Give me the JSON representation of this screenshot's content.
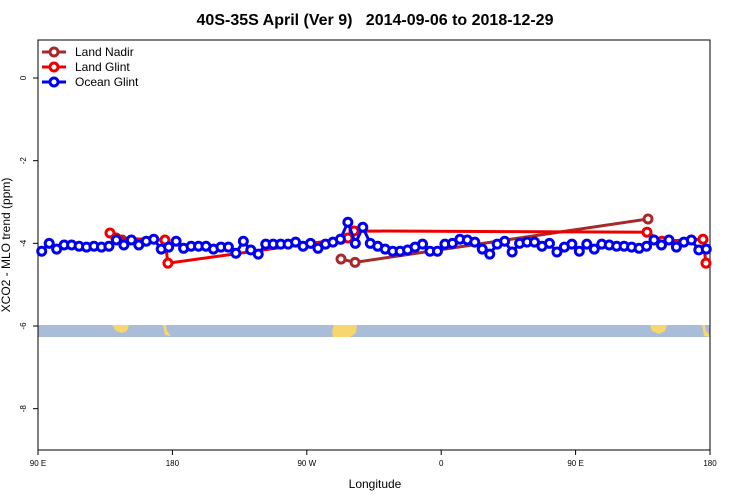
{
  "chart_data": {
    "type": "line",
    "title": "40S-35S April (Ver 9)   2014-09-06 to 2018-12-29",
    "x_label": "Longitude",
    "y_label": "XCO2 - MLO trend (ppm)",
    "xlim": [
      90,
      540
    ],
    "ylim": [
      -9,
      0.92
    ],
    "xticks": [
      {
        "value": 90,
        "label": "90 E"
      },
      180,
      {
        "value": 270,
        "label": "90 W"
      },
      {
        "value": 360,
        "label": "0"
      },
      {
        "value": 450,
        "label": "90 E"
      },
      {
        "value": 540,
        "label": "180"
      }
    ],
    "yticks": [
      -8,
      -6,
      -4,
      -2,
      0
    ],
    "legend_position": "top-left",
    "series": [
      {
        "name": "Land Nadir",
        "color": "#a52a2a",
        "x": [
          142.2,
          146.3,
          288.9,
          292.9,
          302.3,
          498.5,
          503.9
        ],
        "values": [
          -3.87,
          -3.92,
          null,
          -4.38,
          -4.46,
          -3.41,
          null
        ]
      },
      {
        "name": "Land Glint",
        "color": "#ee0000",
        "x": [
          138.2,
          142.2,
          175.0,
          177.0,
          292.9,
          297.6,
          301.6,
          497.8,
          507.9,
          535.3,
          537.3
        ],
        "values": [
          -3.75,
          -3.87,
          -3.92,
          -4.48,
          -3.9,
          -3.87,
          -3.7,
          -3.73,
          -3.95,
          -3.9,
          -4.48
        ]
      },
      {
        "name": "Ocean Glint",
        "color": "#0000ee",
        "x": [
          92.5,
          97.5,
          102.5,
          107.5,
          112.5,
          117.5,
          122.5,
          127.5,
          132.5,
          137.5,
          142.5,
          147.5,
          152.5,
          157.5,
          162.5,
          167.5,
          172.5,
          177.5,
          182.5,
          187.5,
          192.5,
          197.5,
          202.5,
          207.5,
          212.5,
          217.5,
          222.5,
          227.5,
          232.5,
          237.5,
          242.5,
          247.5,
          252.5,
          257.5,
          262.5,
          267.5,
          272.5,
          277.5,
          282.5,
          287.5,
          292.5,
          297.5,
          302.5,
          307.5,
          312.5,
          317.5,
          322.5,
          327.5,
          332.5,
          337.5,
          342.5,
          347.5,
          352.5,
          357.5,
          362.5,
          367.5,
          372.5,
          377.5,
          382.5,
          387.5,
          392.5,
          397.5,
          402.5,
          407.5,
          412.5,
          417.5,
          422.5,
          427.5,
          432.5,
          437.5,
          442.5,
          447.5,
          452.5,
          457.5,
          462.5,
          467.5,
          472.5,
          477.5,
          482.5,
          487.5,
          492.5,
          497.5,
          502.5,
          507.5,
          512.5,
          517.5,
          522.5,
          527.5,
          532.5,
          537.5
        ],
        "values": [
          -4.19,
          -4.0,
          -4.14,
          -4.04,
          -4.04,
          -4.07,
          -4.09,
          -4.07,
          -4.09,
          -4.07,
          -3.92,
          -4.04,
          -3.92,
          -4.04,
          -3.95,
          -3.9,
          -4.14,
          -4.09,
          -3.95,
          -4.12,
          -4.07,
          -4.07,
          -4.07,
          -4.14,
          -4.09,
          -4.09,
          -4.24,
          -3.95,
          -4.16,
          -4.26,
          -4.02,
          -4.02,
          -4.02,
          -4.02,
          -3.97,
          -4.07,
          -4.0,
          -4.12,
          -4.02,
          -3.97,
          -3.9,
          -3.49,
          -4.0,
          -3.61,
          -4.0,
          -4.07,
          -4.14,
          -4.19,
          -4.19,
          -4.16,
          -4.09,
          -4.02,
          -4.19,
          -4.19,
          -4.02,
          -4.0,
          -3.9,
          -3.92,
          -3.97,
          -4.14,
          -4.26,
          -4.02,
          -3.95,
          -4.21,
          -4.0,
          -3.97,
          -3.97,
          -4.07,
          -4.0,
          -4.21,
          -4.09,
          -4.02,
          -4.19,
          -4.02,
          -4.14,
          -4.02,
          -4.04,
          -4.07,
          -4.07,
          -4.09,
          -4.12,
          -4.07,
          -3.92,
          -4.04,
          -3.92,
          -4.09,
          -3.97,
          -3.92,
          -4.16,
          -4.14
        ]
      }
    ]
  }
}
